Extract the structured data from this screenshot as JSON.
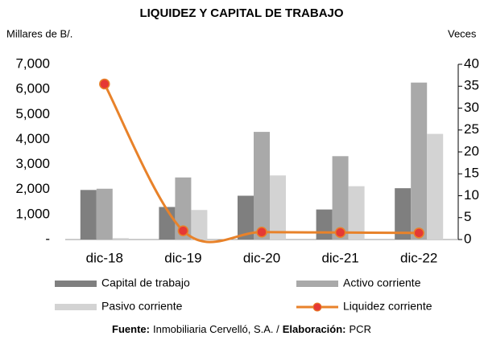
{
  "chart_data": {
    "type": "bar",
    "title": "LIQUIDEZ Y CAPITAL DE TRABAJO",
    "y_label": "Millares de B/.",
    "y2_label": "Veces",
    "categories": [
      "dic-18",
      "dic-19",
      "dic-20",
      "dic-21",
      "dic-22"
    ],
    "series": [
      {
        "name": "Capital de trabajo",
        "color": "#7f7f7f",
        "values": [
          1980,
          1300,
          1750,
          1200,
          2050
        ]
      },
      {
        "name": "Activo corriente",
        "color": "#a9a9a9",
        "values": [
          2030,
          2480,
          4300,
          3330,
          6270
        ]
      },
      {
        "name": "Pasivo corriente",
        "color": "#d3d3d3",
        "values": [
          57,
          1180,
          2560,
          2130,
          4220
        ]
      },
      {
        "name": "Liquidez corriente",
        "type": "line",
        "axis": "y2",
        "color": "#e8822a",
        "marker_color": "#e53935",
        "values": [
          35.5,
          2.0,
          1.7,
          1.6,
          1.5
        ]
      }
    ],
    "ylim": [
      0,
      7000
    ],
    "yticks": [
      {
        "value": 0,
        "label": "-"
      },
      {
        "value": 1000,
        "label": "1,000"
      },
      {
        "value": 2000,
        "label": "2,000"
      },
      {
        "value": 3000,
        "label": "3,000"
      },
      {
        "value": 4000,
        "label": "4,000"
      },
      {
        "value": 5000,
        "label": "5,000"
      },
      {
        "value": 6000,
        "label": "6,000"
      },
      {
        "value": 7000,
        "label": "7,000"
      }
    ],
    "y2lim": [
      0,
      40
    ],
    "y2ticks": [
      0,
      5,
      10,
      15,
      20,
      25,
      30,
      35,
      40
    ],
    "source": [
      "Fuente:",
      "Inmobiliaria Cervelló, S.A. /",
      "Elaboración:",
      "PCR"
    ]
  }
}
